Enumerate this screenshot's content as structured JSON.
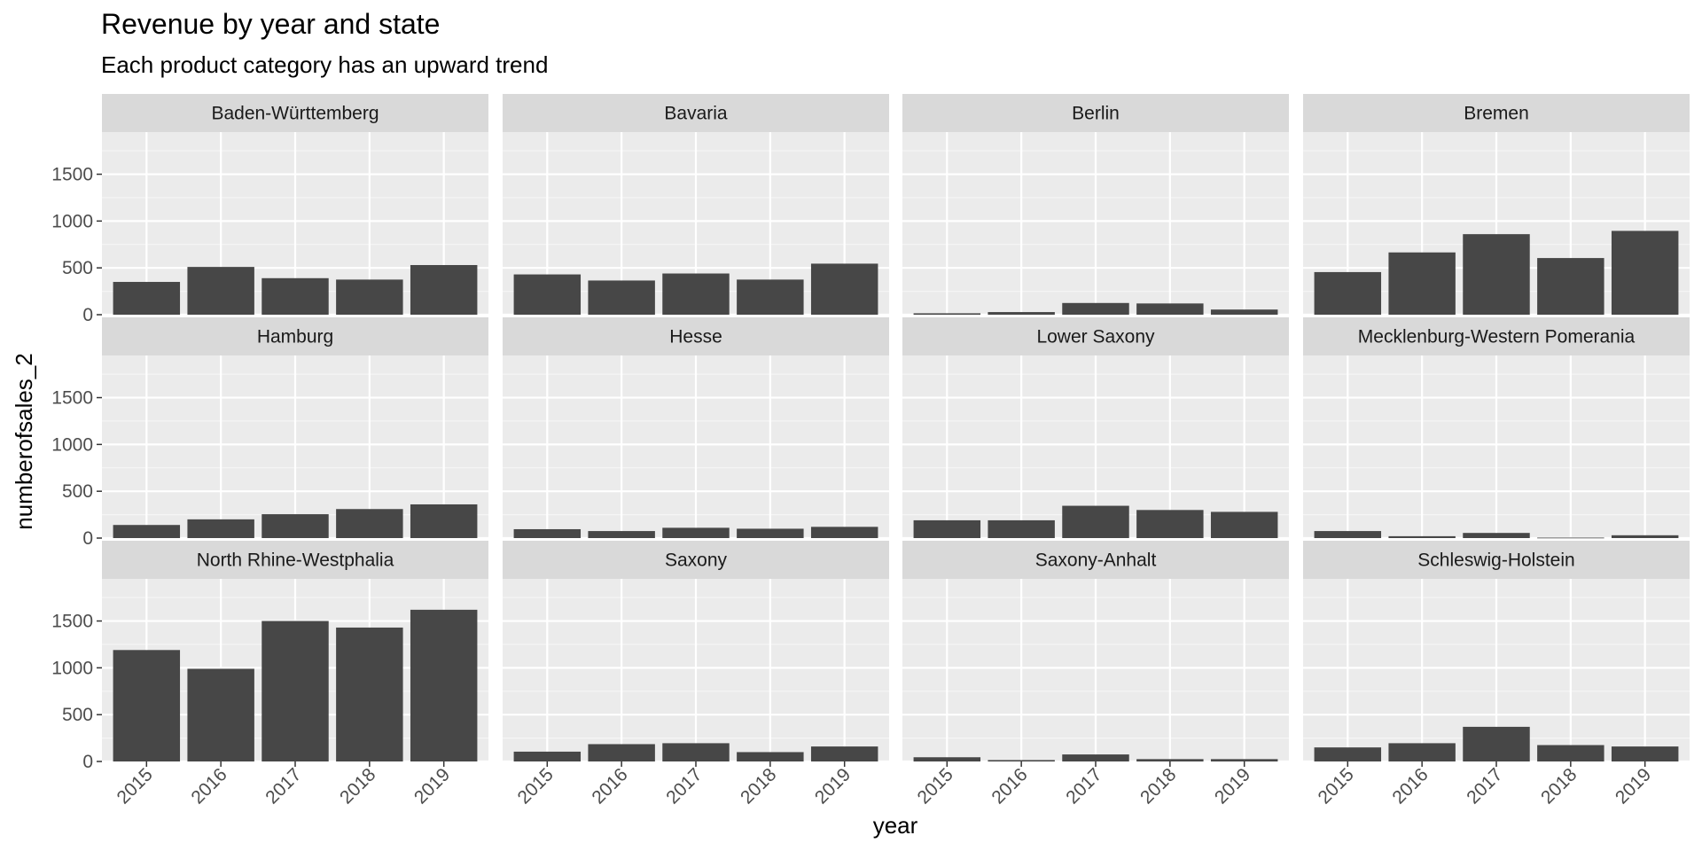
{
  "chart_data": {
    "type": "bar",
    "title": "Revenue by year and state",
    "subtitle": "Each product category has an upward trend",
    "xlabel": "year",
    "ylabel": "numberofsales_2",
    "categories": [
      "2015",
      "2016",
      "2017",
      "2018",
      "2019"
    ],
    "ylim": [
      0,
      1950
    ],
    "yticks": [
      "0",
      "500",
      "1000",
      "1500"
    ],
    "grid": true,
    "facet_layout": "4 columns x 3 rows",
    "colors": {
      "bar": "#474747",
      "panel_bg": "#ebebeb",
      "strip_bg": "#d9d9d9",
      "grid_major": "#ffffff",
      "tick_text": "#4d4d4d"
    },
    "facets": [
      {
        "name": "Baden-Württemberg",
        "values": [
          350,
          510,
          390,
          375,
          530
        ]
      },
      {
        "name": "Bavaria",
        "values": [
          430,
          365,
          440,
          375,
          545
        ]
      },
      {
        "name": "Berlin",
        "values": [
          15,
          28,
          125,
          120,
          55
        ]
      },
      {
        "name": "Bremen",
        "values": [
          455,
          665,
          860,
          605,
          895
        ]
      },
      {
        "name": "Hamburg",
        "values": [
          140,
          200,
          255,
          310,
          360
        ]
      },
      {
        "name": "Hesse",
        "values": [
          95,
          75,
          110,
          100,
          120
        ]
      },
      {
        "name": "Lower Saxony",
        "values": [
          190,
          190,
          345,
          300,
          280
        ]
      },
      {
        "name": "Mecklenburg-Western Pomerania",
        "values": [
          75,
          20,
          55,
          5,
          30
        ]
      },
      {
        "name": "North Rhine-Westphalia",
        "values": [
          1190,
          990,
          1500,
          1430,
          1620
        ]
      },
      {
        "name": "Saxony",
        "values": [
          105,
          185,
          195,
          100,
          160
        ]
      },
      {
        "name": "Saxony-Anhalt",
        "values": [
          45,
          15,
          75,
          25,
          25
        ]
      },
      {
        "name": "Schleswig-Holstein",
        "values": [
          150,
          195,
          370,
          175,
          160
        ]
      }
    ]
  }
}
